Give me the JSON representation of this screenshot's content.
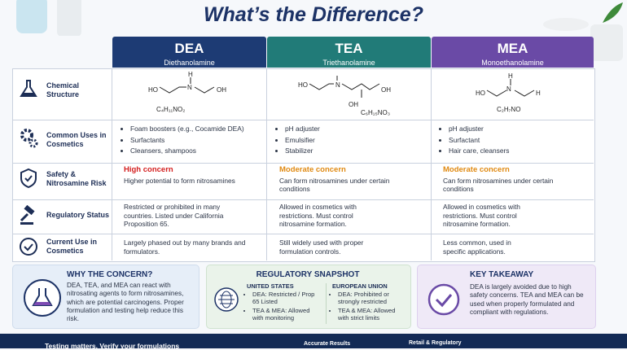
{
  "header": {
    "title": "What’s the Difference?"
  },
  "columns": [
    {
      "name": "DEA",
      "full_name": "Diethanolamine"
    },
    {
      "name": "TEA",
      "full_name": "Triethanolamine"
    },
    {
      "name": "MEA",
      "full_name": "Monoethanolamine"
    }
  ],
  "rows": [
    "Chemical Structure",
    "Common Uses in Cosmetics",
    "Safety & Nitrosamine Risk",
    "Regulatory Status",
    "Current Use in Cosmetics"
  ],
  "structures": [
    {
      "atoms": [
        "HO",
        "N",
        "H",
        "OH"
      ],
      "formula": "C₄H₁₁NO₂"
    },
    {
      "atoms": [
        "HO",
        "N",
        "OH",
        "OH"
      ],
      "formula": "C₆H₁₅NO₃"
    },
    {
      "atoms": [
        "H",
        "N",
        "HO",
        "H"
      ],
      "formula": "C₂H₇NO"
    }
  ],
  "uses": [
    [
      "Foam boosters (e.g., Cocamide DEA)",
      "Surfactants",
      "Cleansers, shampoos"
    ],
    [
      "pH adjuster",
      "Emulsifier",
      "Stabilizer"
    ],
    [
      "pH adjuster",
      "Surfactant",
      "Hair care, cleansers"
    ]
  ],
  "safety": [
    {
      "level": "High concern",
      "text": "Higher potential to form nitrosamines"
    },
    {
      "level": "Moderate concern",
      "text": "Can form nitrosamines under certain conditions"
    },
    {
      "level": "Moderate concern",
      "text": "Can form nitrosamines under certain conditions"
    }
  ],
  "regulatory": [
    "Restricted or prohibited in many countries. Listed under California Proposition 65.",
    "Allowed in cosmetics with restrictions. Must control nitrosamine formation.",
    "Allowed in cosmetics with restrictions. Must control nitrosamine formation."
  ],
  "current_use": [
    "Largely phased out by many brands and formulators.",
    "Still widely used with proper formulation controls.",
    "Less common, used in specific applications."
  ],
  "panels": {
    "concern": {
      "title": "WHY THE CONCERN?",
      "text": "DEA, TEA, and MEA can react with nitrosating agents to form nitrosamines, which are potential carcinogens. Proper formulation and testing help reduce this risk."
    },
    "regulatory": {
      "title": "REGULATORY SNAPSHOT",
      "regions": [
        {
          "name": "UNITED STATES",
          "items": [
            "DEA: Restricted / Prop 65 Listed",
            "TEA & MEA: Allowed with monitoring"
          ]
        },
        {
          "name": "EUROPEAN UNION",
          "items": [
            "DEA: Prohibited or strongly restricted",
            "TEA & MEA: Allowed with strict limits"
          ]
        }
      ]
    },
    "takeaway": {
      "title": "KEY TAKEAWAY",
      "text": "DEA is largely avoided due to high safety concerns. TEA and MEA can be used when properly formulated and compliant with regulations."
    }
  },
  "footer": [
    "Testing matters. Verify your formulations",
    "Accurate Results",
    "Retail & Regulatory"
  ]
}
